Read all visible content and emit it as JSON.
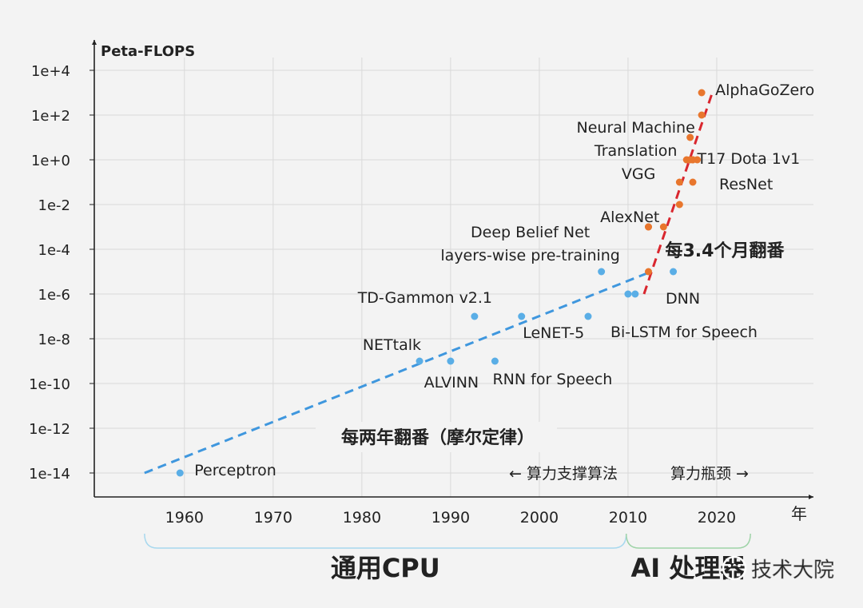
{
  "chart_data": {
    "type": "scatter",
    "ylabel": "Peta-FLOPS",
    "xlabel": "年",
    "y_scale": "log10",
    "ylim": [
      "1e-15",
      "1e+5"
    ],
    "xlim": [
      1952,
      2030
    ],
    "grid": true,
    "x_ticks": [
      "1960",
      "1970",
      "1980",
      "1990",
      "2000",
      "2010",
      "2020"
    ],
    "y_ticks": [
      "1e+4",
      "1e+2",
      "1e+0",
      "1e-2",
      "1e-4",
      "1e-6",
      "1e-8",
      "1e-10",
      "1e-12",
      "1e-14"
    ],
    "series": [
      {
        "color": "#5aaee6",
        "points": [
          {
            "x": 1959.5,
            "y": "1e-14.1",
            "label": "Perceptron"
          },
          {
            "x": 1986.5,
            "y": "1e-9.7",
            "label": "NETtalk"
          },
          {
            "x": 1990,
            "y": "1e-9.7",
            "label": "ALVINN"
          },
          {
            "x": 1992.7,
            "y": "1e-7.3",
            "label": "TD-Gammon v2.1"
          },
          {
            "x": 1995,
            "y": "1e-9.1",
            "label": "RNN for Speech"
          },
          {
            "x": 1998,
            "y": "1e-7.9",
            "label": "LeNET-5"
          },
          {
            "x": 2005.5,
            "y": "1e-7.2",
            "label": "Bi-LSTM for Speech"
          },
          {
            "x": 2007,
            "y": "1e-5.5",
            "label": "Deep Belief Net layers-wise pre-training"
          },
          {
            "x": 2010,
            "y": "1e-6.2"
          },
          {
            "x": 2010.8,
            "y": "1e-6.6"
          },
          {
            "x": 2015.1,
            "y": "1e-5.7",
            "label": "DNN"
          }
        ]
      },
      {
        "color": "#e8762d",
        "points": [
          {
            "x": 2012.3,
            "y": "1e-5.4"
          },
          {
            "x": 2012.3,
            "y": "1e-3.7"
          },
          {
            "x": 2012.3,
            "y": "1e-3.2"
          },
          {
            "x": 2014,
            "y": "1e-3.3",
            "label": "AlexNet"
          },
          {
            "x": 2015.8,
            "y": "1e-2.1"
          },
          {
            "x": 2015.8,
            "y": "1e-1.1",
            "label": "VGG"
          },
          {
            "x": 2017.3,
            "y": "1e-1.1",
            "label": "ResNet"
          },
          {
            "x": 2017.3,
            "y": "1e-0.7"
          },
          {
            "x": 2016.6,
            "y": "1e+0.2"
          },
          {
            "x": 2017,
            "y": "1e+0.4"
          },
          {
            "x": 2017.8,
            "y": "1e+0.5",
            "label": "T17 Dota 1v1"
          },
          {
            "x": 2017.3,
            "y": "1e+0.9"
          },
          {
            "x": 2017,
            "y": "1e+1.5",
            "label": "Neural Machine Translation"
          },
          {
            "x": 2018.3,
            "y": "1e+2.3"
          },
          {
            "x": 2018.3,
            "y": "1e+3.2",
            "label": "AlphaGoZero"
          }
        ]
      }
    ],
    "trend_lines": [
      {
        "color": "#3f97de",
        "label": "每两年翻番（摩尔定律）",
        "from": {
          "x": 1955.5,
          "y": "1e-14.2"
        },
        "to": {
          "x": 2012.6,
          "y": "1e-5.9"
        }
      },
      {
        "color": "#d9262e",
        "label": "每3.4个月翻番",
        "from": {
          "x": 2011.8,
          "y": "1e-6"
        },
        "to": {
          "x": 2019.5,
          "y": "1e+3.6"
        }
      }
    ],
    "annotations": [
      "←  算力支撑算法",
      "算力瓶颈 →"
    ],
    "eras": [
      {
        "label": "通用CPU",
        "from": 1955.5,
        "to": 2009.8,
        "color": "#2f8fdc"
      },
      {
        "label": "AI 处理器",
        "from": 2009.8,
        "to": 2023.8,
        "color": "#e0282e"
      }
    ]
  },
  "watermark": "技术大院"
}
